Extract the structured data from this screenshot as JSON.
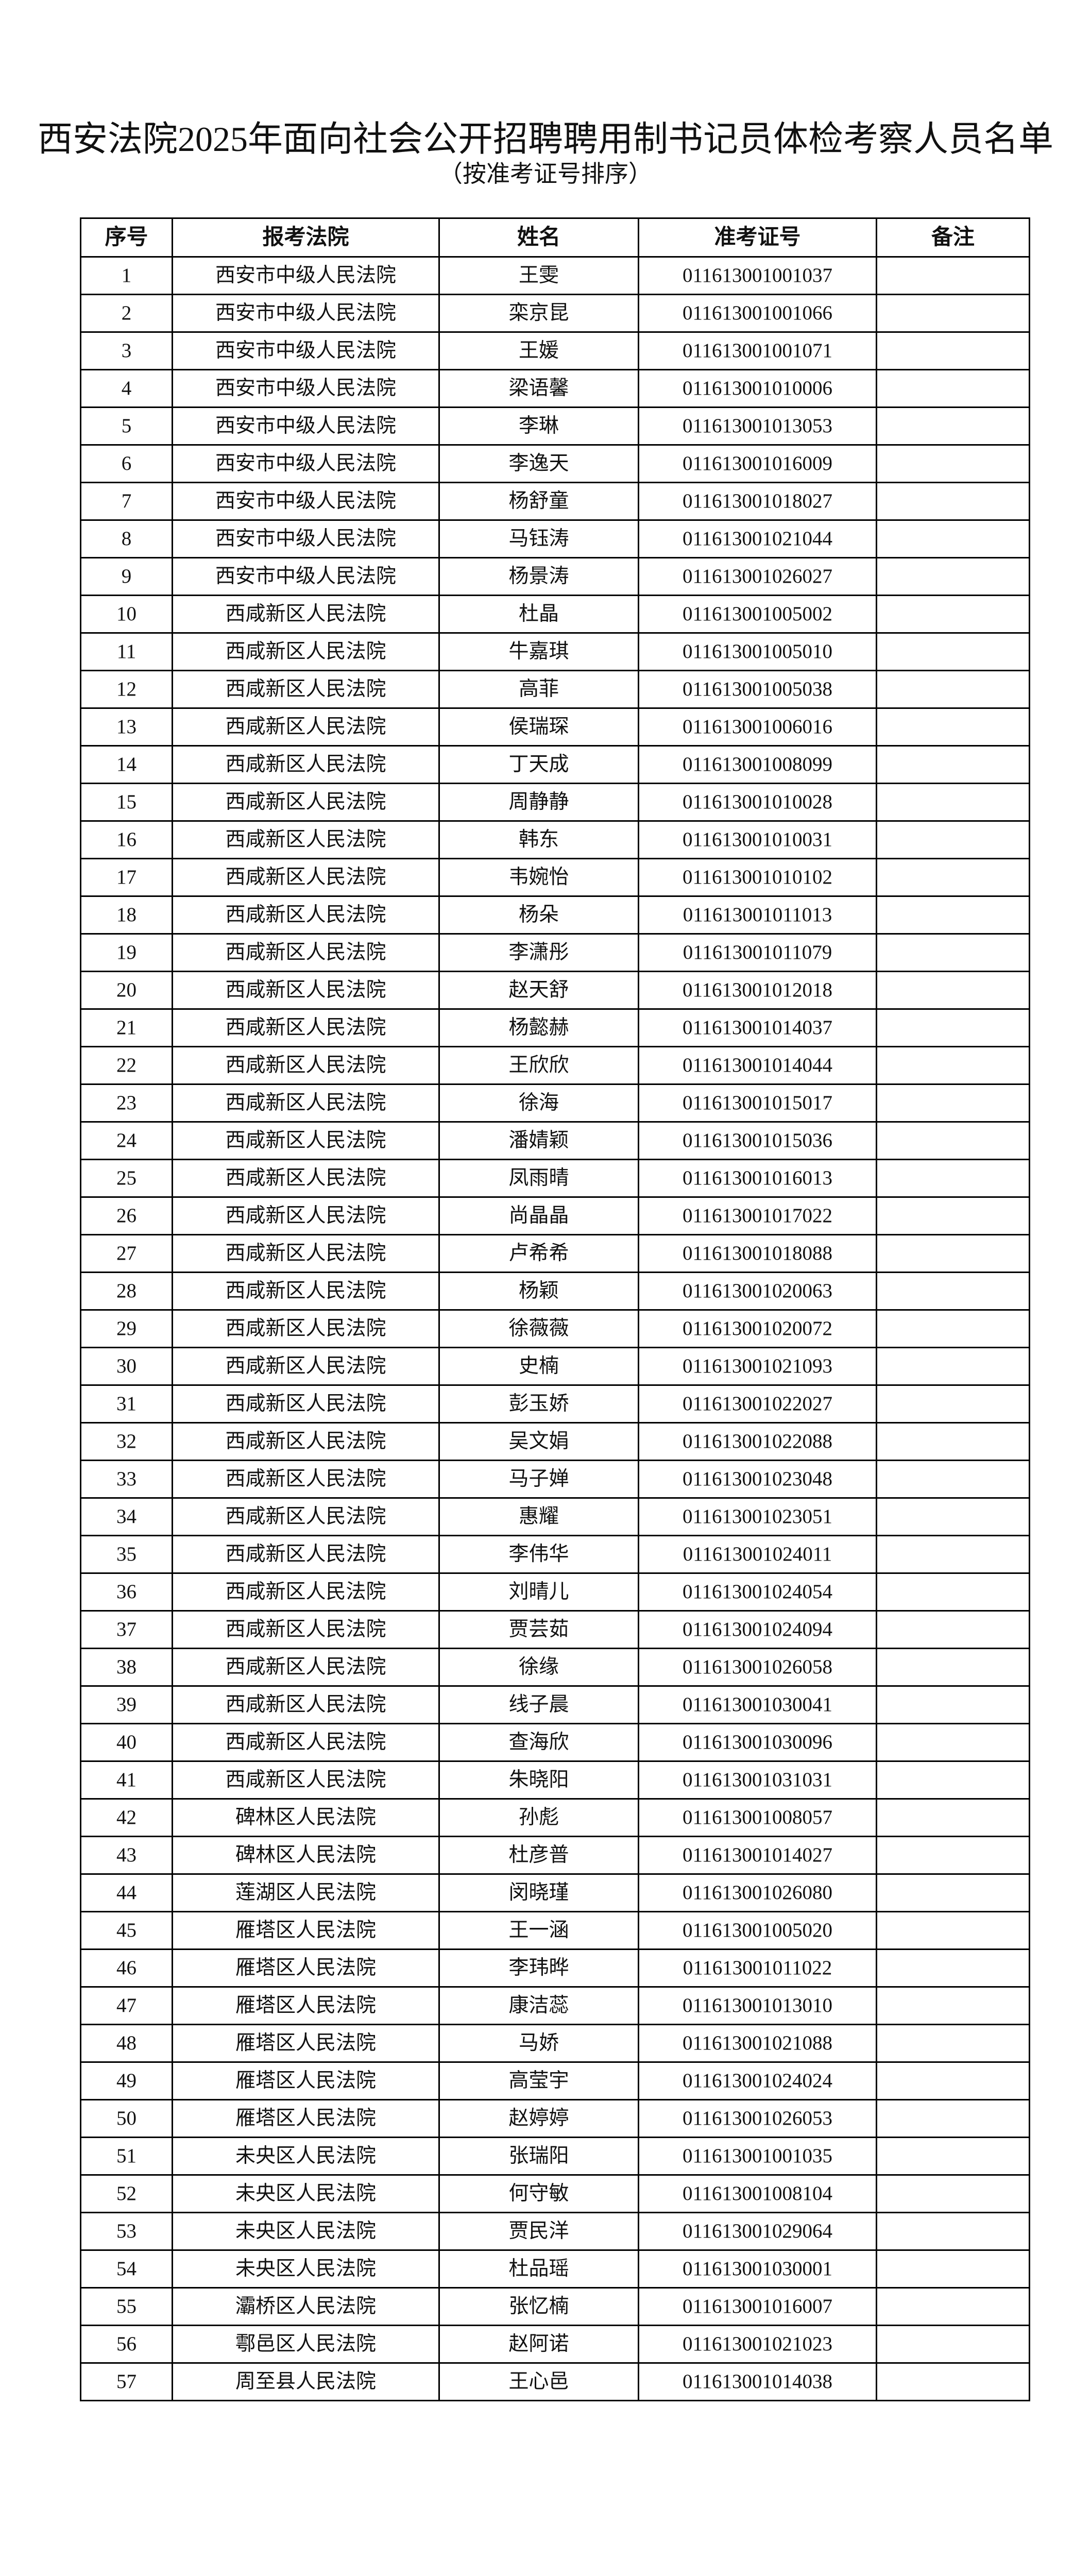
{
  "document": {
    "title": "西安法院2025年面向社会公开招聘聘用制书记员体检考察人员名单",
    "subtitle": "（按准考证号排序）"
  },
  "table": {
    "headers": [
      "序号",
      "报考法院",
      "姓名",
      "准考证号",
      "备注"
    ],
    "rows": [
      {
        "no": "1",
        "court": "西安市中级人民法院",
        "name": "王雯",
        "id": "011613001001037",
        "note": ""
      },
      {
        "no": "2",
        "court": "西安市中级人民法院",
        "name": "栾京昆",
        "id": "011613001001066",
        "note": ""
      },
      {
        "no": "3",
        "court": "西安市中级人民法院",
        "name": "王媛",
        "id": "011613001001071",
        "note": ""
      },
      {
        "no": "4",
        "court": "西安市中级人民法院",
        "name": "梁语馨",
        "id": "011613001010006",
        "note": ""
      },
      {
        "no": "5",
        "court": "西安市中级人民法院",
        "name": "李琳",
        "id": "011613001013053",
        "note": ""
      },
      {
        "no": "6",
        "court": "西安市中级人民法院",
        "name": "李逸天",
        "id": "011613001016009",
        "note": ""
      },
      {
        "no": "7",
        "court": "西安市中级人民法院",
        "name": "杨舒童",
        "id": "011613001018027",
        "note": ""
      },
      {
        "no": "8",
        "court": "西安市中级人民法院",
        "name": "马钰涛",
        "id": "011613001021044",
        "note": ""
      },
      {
        "no": "9",
        "court": "西安市中级人民法院",
        "name": "杨景涛",
        "id": "011613001026027",
        "note": ""
      },
      {
        "no": "10",
        "court": "西咸新区人民法院",
        "name": "杜晶",
        "id": "011613001005002",
        "note": ""
      },
      {
        "no": "11",
        "court": "西咸新区人民法院",
        "name": "牛嘉琪",
        "id": "011613001005010",
        "note": ""
      },
      {
        "no": "12",
        "court": "西咸新区人民法院",
        "name": "高菲",
        "id": "011613001005038",
        "note": ""
      },
      {
        "no": "13",
        "court": "西咸新区人民法院",
        "name": "侯瑞琛",
        "id": "011613001006016",
        "note": ""
      },
      {
        "no": "14",
        "court": "西咸新区人民法院",
        "name": "丁天成",
        "id": "011613001008099",
        "note": ""
      },
      {
        "no": "15",
        "court": "西咸新区人民法院",
        "name": "周静静",
        "id": "011613001010028",
        "note": ""
      },
      {
        "no": "16",
        "court": "西咸新区人民法院",
        "name": "韩东",
        "id": "011613001010031",
        "note": ""
      },
      {
        "no": "17",
        "court": "西咸新区人民法院",
        "name": "韦婉怡",
        "id": "011613001010102",
        "note": ""
      },
      {
        "no": "18",
        "court": "西咸新区人民法院",
        "name": "杨朵",
        "id": "011613001011013",
        "note": ""
      },
      {
        "no": "19",
        "court": "西咸新区人民法院",
        "name": "李潇彤",
        "id": "011613001011079",
        "note": ""
      },
      {
        "no": "20",
        "court": "西咸新区人民法院",
        "name": "赵天舒",
        "id": "011613001012018",
        "note": ""
      },
      {
        "no": "21",
        "court": "西咸新区人民法院",
        "name": "杨懿赫",
        "id": "011613001014037",
        "note": ""
      },
      {
        "no": "22",
        "court": "西咸新区人民法院",
        "name": "王欣欣",
        "id": "011613001014044",
        "note": ""
      },
      {
        "no": "23",
        "court": "西咸新区人民法院",
        "name": "徐海",
        "id": "011613001015017",
        "note": ""
      },
      {
        "no": "24",
        "court": "西咸新区人民法院",
        "name": "潘婧颖",
        "id": "011613001015036",
        "note": ""
      },
      {
        "no": "25",
        "court": "西咸新区人民法院",
        "name": "凤雨晴",
        "id": "011613001016013",
        "note": ""
      },
      {
        "no": "26",
        "court": "西咸新区人民法院",
        "name": "尚晶晶",
        "id": "011613001017022",
        "note": ""
      },
      {
        "no": "27",
        "court": "西咸新区人民法院",
        "name": "卢希希",
        "id": "011613001018088",
        "note": ""
      },
      {
        "no": "28",
        "court": "西咸新区人民法院",
        "name": "杨颖",
        "id": "011613001020063",
        "note": ""
      },
      {
        "no": "29",
        "court": "西咸新区人民法院",
        "name": "徐薇薇",
        "id": "011613001020072",
        "note": ""
      },
      {
        "no": "30",
        "court": "西咸新区人民法院",
        "name": "史楠",
        "id": "011613001021093",
        "note": ""
      },
      {
        "no": "31",
        "court": "西咸新区人民法院",
        "name": "彭玉娇",
        "id": "011613001022027",
        "note": ""
      },
      {
        "no": "32",
        "court": "西咸新区人民法院",
        "name": "吴文娟",
        "id": "011613001022088",
        "note": ""
      },
      {
        "no": "33",
        "court": "西咸新区人民法院",
        "name": "马子婵",
        "id": "011613001023048",
        "note": ""
      },
      {
        "no": "34",
        "court": "西咸新区人民法院",
        "name": "惠耀",
        "id": "011613001023051",
        "note": ""
      },
      {
        "no": "35",
        "court": "西咸新区人民法院",
        "name": "李伟华",
        "id": "011613001024011",
        "note": ""
      },
      {
        "no": "36",
        "court": "西咸新区人民法院",
        "name": "刘晴儿",
        "id": "011613001024054",
        "note": ""
      },
      {
        "no": "37",
        "court": "西咸新区人民法院",
        "name": "贾芸茹",
        "id": "011613001024094",
        "note": ""
      },
      {
        "no": "38",
        "court": "西咸新区人民法院",
        "name": "徐缘",
        "id": "011613001026058",
        "note": ""
      },
      {
        "no": "39",
        "court": "西咸新区人民法院",
        "name": "线子晨",
        "id": "011613001030041",
        "note": ""
      },
      {
        "no": "40",
        "court": "西咸新区人民法院",
        "name": "查海欣",
        "id": "011613001030096",
        "note": ""
      },
      {
        "no": "41",
        "court": "西咸新区人民法院",
        "name": "朱晓阳",
        "id": "011613001031031",
        "note": ""
      },
      {
        "no": "42",
        "court": "碑林区人民法院",
        "name": "孙彪",
        "id": "011613001008057",
        "note": ""
      },
      {
        "no": "43",
        "court": "碑林区人民法院",
        "name": "杜彦普",
        "id": "011613001014027",
        "note": ""
      },
      {
        "no": "44",
        "court": "莲湖区人民法院",
        "name": "闵晓瑾",
        "id": "011613001026080",
        "note": ""
      },
      {
        "no": "45",
        "court": "雁塔区人民法院",
        "name": "王一涵",
        "id": "011613001005020",
        "note": ""
      },
      {
        "no": "46",
        "court": "雁塔区人民法院",
        "name": "李玮晔",
        "id": "011613001011022",
        "note": ""
      },
      {
        "no": "47",
        "court": "雁塔区人民法院",
        "name": "康洁蕊",
        "id": "011613001013010",
        "note": ""
      },
      {
        "no": "48",
        "court": "雁塔区人民法院",
        "name": "马娇",
        "id": "011613001021088",
        "note": ""
      },
      {
        "no": "49",
        "court": "雁塔区人民法院",
        "name": "高莹宇",
        "id": "011613001024024",
        "note": ""
      },
      {
        "no": "50",
        "court": "雁塔区人民法院",
        "name": "赵婷婷",
        "id": "011613001026053",
        "note": ""
      },
      {
        "no": "51",
        "court": "未央区人民法院",
        "name": "张瑞阳",
        "id": "011613001001035",
        "note": ""
      },
      {
        "no": "52",
        "court": "未央区人民法院",
        "name": "何守敏",
        "id": "011613001008104",
        "note": ""
      },
      {
        "no": "53",
        "court": "未央区人民法院",
        "name": "贾民洋",
        "id": "011613001029064",
        "note": ""
      },
      {
        "no": "54",
        "court": "未央区人民法院",
        "name": "杜品瑶",
        "id": "011613001030001",
        "note": ""
      },
      {
        "no": "55",
        "court": "灞桥区人民法院",
        "name": "张忆楠",
        "id": "011613001016007",
        "note": ""
      },
      {
        "no": "56",
        "court": "鄠邑区人民法院",
        "name": "赵阿诺",
        "id": "011613001021023",
        "note": ""
      },
      {
        "no": "57",
        "court": "周至县人民法院",
        "name": "王心邑",
        "id": "011613001014038",
        "note": ""
      }
    ]
  }
}
